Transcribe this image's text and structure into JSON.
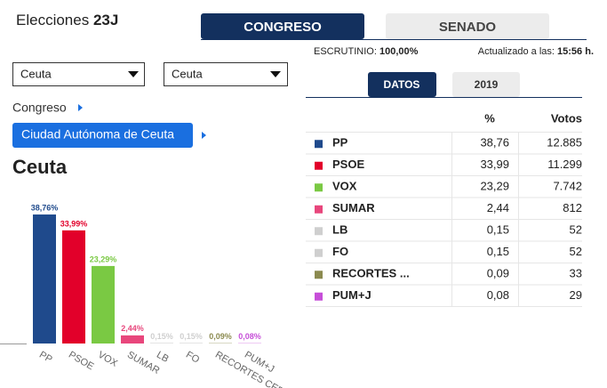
{
  "header": {
    "title": "Elecciones",
    "title_bold": "23J"
  },
  "tabs": [
    "CONGRESO",
    "SENADO"
  ],
  "status": {
    "scrutiny_label": "ESCRUTINIO:",
    "scrutiny_value": "100,00%",
    "updated_label": "Actualizado a las:",
    "updated_value": "15:56 h."
  },
  "selectors": [
    "Ceuta",
    "Ceuta"
  ],
  "breadcrumb": {
    "level": "Congreso",
    "region": "Ciudad Autónoma de Ceuta"
  },
  "place": "Ceuta",
  "subtabs": [
    "DATOS",
    "2019"
  ],
  "table": {
    "headers": [
      "%",
      "Votos"
    ],
    "rows": [
      [
        "PP",
        "38,76",
        "12.885"
      ],
      [
        "PSOE",
        "33,99",
        "11.299"
      ],
      [
        "VOX",
        "23,29",
        "7.742"
      ],
      [
        "SUMAR",
        "2,44",
        "812"
      ],
      [
        "LB",
        "0,15",
        "52"
      ],
      [
        "FO",
        "0,15",
        "52"
      ],
      [
        "RECORTES ...",
        "0,09",
        "33"
      ],
      [
        "PUM+J",
        "0,08",
        "29"
      ]
    ]
  },
  "chart_data": {
    "type": "bar",
    "categories": [
      "PP",
      "PSOE",
      "VOX",
      "SUMAR",
      "LB",
      "FO",
      "RECORTES CERO",
      "PUM+J"
    ],
    "values": [
      38.76,
      33.99,
      23.29,
      2.44,
      0.15,
      0.15,
      0.09,
      0.08
    ],
    "value_labels": [
      "38,76%",
      "33,99%",
      "23,29%",
      "2,44%",
      "0,15%",
      "0,15%",
      "0,09%",
      "0,08%"
    ],
    "colors": [
      "#1f4a8c",
      "#e2002a",
      "#7ac943",
      "#e8467c",
      "#cfcfcf",
      "#cfcfcf",
      "#8b8a4f",
      "#c64ed8"
    ]
  }
}
